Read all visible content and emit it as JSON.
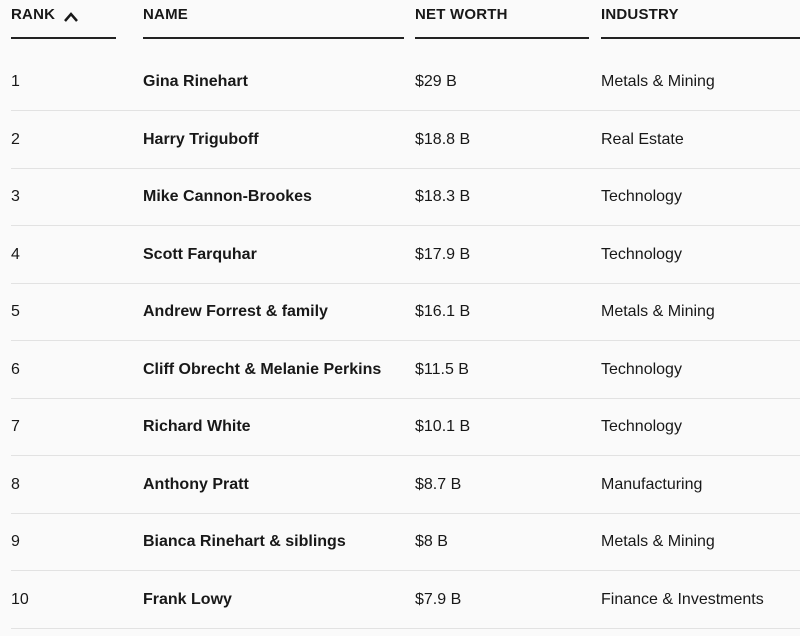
{
  "table": {
    "headers": [
      "RANK",
      "NAME",
      "NET WORTH",
      "INDUSTRY"
    ],
    "rows": [
      [
        "1",
        "Gina Rinehart",
        "$29 B",
        "Metals & Mining"
      ],
      [
        "2",
        "Harry Triguboff",
        "$18.8 B",
        "Real Estate"
      ],
      [
        "3",
        "Mike Cannon-Brookes",
        "$18.3 B",
        "Technology"
      ],
      [
        "4",
        "Scott Farquhar",
        "$17.9 B",
        "Technology"
      ],
      [
        "5",
        "Andrew Forrest & family",
        "$16.1 B",
        "Metals & Mining"
      ],
      [
        "6",
        "Cliff Obrecht & Melanie Perkins",
        "$11.5 B",
        "Technology"
      ],
      [
        "7",
        "Richard White",
        "$10.1 B",
        "Technology"
      ],
      [
        "8",
        "Anthony Pratt",
        "$8.7 B",
        "Manufacturing"
      ],
      [
        "9",
        "Bianca Rinehart & siblings",
        "$8 B",
        "Metals & Mining"
      ],
      [
        "10",
        "Frank Lowy",
        "$7.9 B",
        "Finance & Investments"
      ]
    ]
  }
}
